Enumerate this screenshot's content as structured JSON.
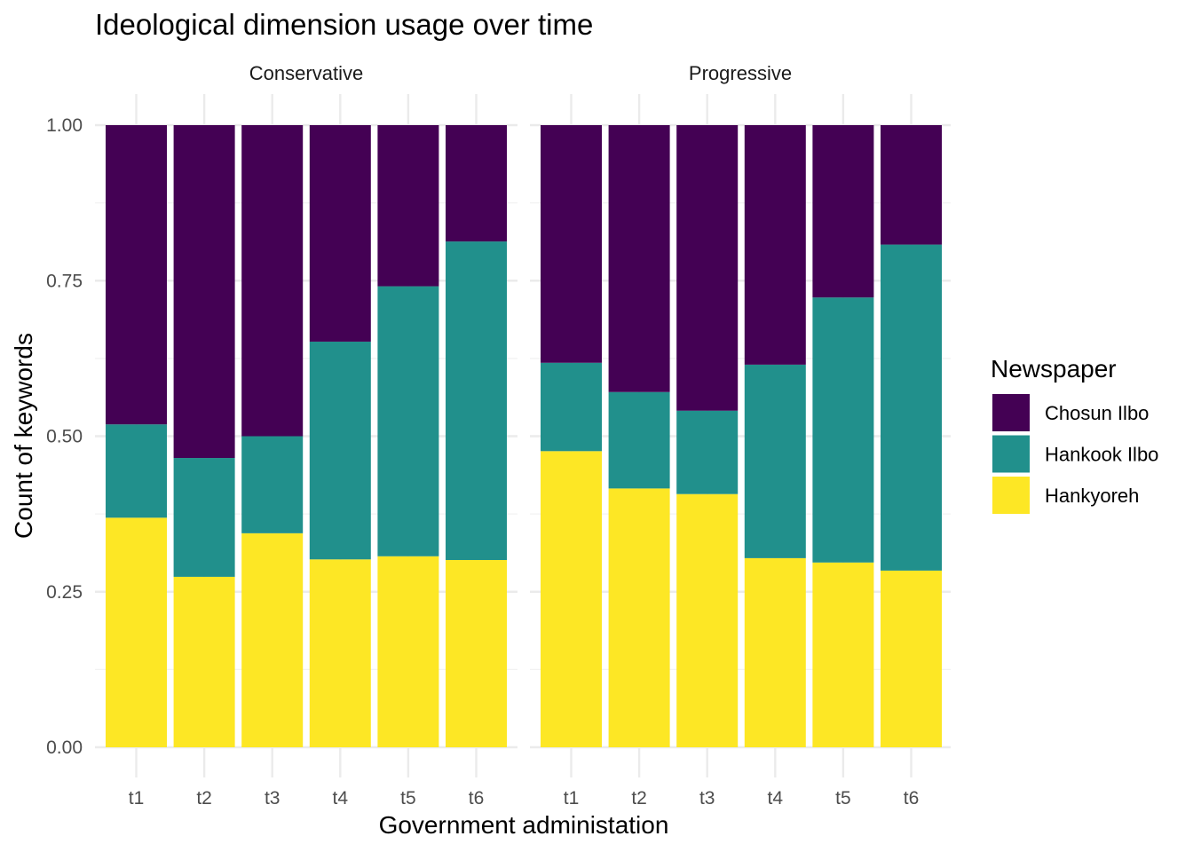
{
  "chart_data": {
    "type": "bar",
    "stacked": "fill",
    "title": "Ideological dimension usage over time",
    "xlabel": "Government administation",
    "ylabel": "Count of keywords",
    "ylim": [
      0,
      1
    ],
    "y_ticks": [
      "0.00",
      "0.25",
      "0.50",
      "0.75",
      "1.00"
    ],
    "y_tick_values": [
      0,
      0.25,
      0.5,
      0.75,
      1.0
    ],
    "grid": true,
    "legend": {
      "title": "Newspaper",
      "placement": "right",
      "entries": [
        "Chosun Ilbo",
        "Hankook Ilbo",
        "Hankyoreh"
      ]
    },
    "colors": {
      "Chosun Ilbo": "#440154",
      "Hankook Ilbo": "#21908C",
      "Hankyoreh": "#FDE725"
    },
    "categories": [
      "t1",
      "t2",
      "t3",
      "t4",
      "t5",
      "t6"
    ],
    "panels": [
      {
        "name": "Conservative",
        "series": [
          {
            "name": "Hankyoreh",
            "values": [
              0.369,
              0.274,
              0.344,
              0.302,
              0.307,
              0.301
            ]
          },
          {
            "name": "Hankook Ilbo",
            "values": [
              0.15,
              0.191,
              0.156,
              0.35,
              0.434,
              0.512
            ]
          },
          {
            "name": "Chosun Ilbo",
            "values": [
              0.481,
              0.535,
              0.5,
              0.348,
              0.259,
              0.187
            ]
          }
        ]
      },
      {
        "name": "Progressive",
        "series": [
          {
            "name": "Hankyoreh",
            "values": [
              0.476,
              0.416,
              0.407,
              0.304,
              0.297,
              0.284
            ]
          },
          {
            "name": "Hankook Ilbo",
            "values": [
              0.142,
              0.155,
              0.134,
              0.311,
              0.426,
              0.524
            ]
          },
          {
            "name": "Chosun Ilbo",
            "values": [
              0.382,
              0.429,
              0.459,
              0.385,
              0.277,
              0.192
            ]
          }
        ]
      }
    ]
  }
}
